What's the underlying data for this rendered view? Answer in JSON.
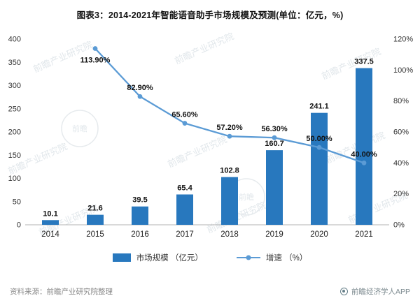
{
  "title": "图表3：2014-2021年智能语音助手市场规模及预测(单位：亿元，%)",
  "watermark": {
    "text": "前瞻产业研究院",
    "seal_text": "前瞻"
  },
  "legend": [
    {
      "label": "市场规模 （亿元）",
      "type": "bar"
    },
    {
      "label": "增速 （%）",
      "type": "line"
    }
  ],
  "footer": {
    "source": "资料来源：前瞻产业研究院整理",
    "brand": "前瞻经济学人APP"
  },
  "chart_data": {
    "type": "bar",
    "subtype": "bar+line combo",
    "title": "2014-2021年智能语音助手市场规模及预测",
    "categories": [
      "2014",
      "2015",
      "2016",
      "2017",
      "2018",
      "2019",
      "2020",
      "2021"
    ],
    "series": [
      {
        "name": "市场规模 （亿元）",
        "type": "bar",
        "axis": "left",
        "color": "#2878BE",
        "values": [
          10.1,
          21.6,
          39.5,
          65.4,
          102.8,
          160.7,
          241.1,
          337.5
        ],
        "labels": [
          "10.1",
          "21.6",
          "39.5",
          "65.4",
          "102.8",
          "160.7",
          "241.1",
          "337.5"
        ]
      },
      {
        "name": "增速 （%）",
        "type": "line",
        "axis": "right",
        "color": "#5B9BD5",
        "values": [
          null,
          113.9,
          82.9,
          65.6,
          57.2,
          56.3,
          50.0,
          40.0
        ],
        "labels": [
          null,
          "113.90%",
          "82.90%",
          "65.60%",
          "57.20%",
          "56.30%",
          "50.00%",
          "40.00%"
        ]
      }
    ],
    "left_axis": {
      "min": 0,
      "max": 400,
      "ticks": [
        0,
        50,
        100,
        150,
        200,
        250,
        300,
        350,
        400
      ]
    },
    "right_axis": {
      "min": 0,
      "max": 120,
      "ticks": [
        "0%",
        "20%",
        "40%",
        "60%",
        "80%",
        "100%",
        "120%"
      ]
    },
    "grid": false,
    "legend_position": "bottom"
  }
}
